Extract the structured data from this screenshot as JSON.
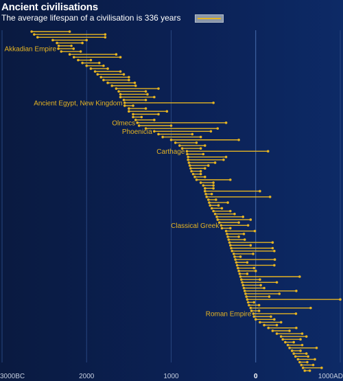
{
  "chart_data": {
    "type": "range",
    "title": "Ancient civilisations",
    "subtitle": "The average lifespan of a civilisation is 336 years",
    "xlim": [
      -3000,
      1000
    ],
    "x_ticks": [
      {
        "value": -3000,
        "label": "3000BC"
      },
      {
        "value": -2000,
        "label": "2000"
      },
      {
        "value": -1000,
        "label": "1000"
      },
      {
        "value": 0,
        "label": "0"
      },
      {
        "value": 1000,
        "label": "1000AD"
      }
    ],
    "grid": "vertical",
    "colors": {
      "accent": "#e6b422",
      "background": "#0b2155",
      "legend": "#8a96a8"
    },
    "annotations": [
      {
        "label": "Akkadian Empire",
        "row": 6
      },
      {
        "label": "Ancient Egypt, New Kingdom",
        "row": 25
      },
      {
        "label": "Olmecs",
        "row": 32
      },
      {
        "label": "Phoenicia",
        "row": 35
      },
      {
        "label": "Carthage",
        "row": 42
      },
      {
        "label": "Classical Greek",
        "row": 68
      },
      {
        "label": "Roman Empire",
        "row": 99
      }
    ],
    "civilisations": [
      {
        "start": -2650,
        "end": -2200
      },
      {
        "start": -2620,
        "end": -1780
      },
      {
        "start": -2580,
        "end": -1780
      },
      {
        "start": -2400,
        "end": -2000
      },
      {
        "start": -2350,
        "end": -2050
      },
      {
        "start": -2330,
        "end": -2180
      },
      {
        "start": -2334,
        "end": -2154
      },
      {
        "start": -2300,
        "end": -2070
      },
      {
        "start": -2200,
        "end": -1650
      },
      {
        "start": -2150,
        "end": -1600
      },
      {
        "start": -2100,
        "end": -1950
      },
      {
        "start": -2050,
        "end": -1850
      },
      {
        "start": -2000,
        "end": -1800
      },
      {
        "start": -1950,
        "end": -1750
      },
      {
        "start": -1900,
        "end": -1600
      },
      {
        "start": -1870,
        "end": -1560
      },
      {
        "start": -1830,
        "end": -1500
      },
      {
        "start": -1800,
        "end": -1500
      },
      {
        "start": -1750,
        "end": -1430
      },
      {
        "start": -1700,
        "end": -1420
      },
      {
        "start": -1650,
        "end": -1150
      },
      {
        "start": -1620,
        "end": -1300
      },
      {
        "start": -1600,
        "end": -1280
      },
      {
        "start": -1600,
        "end": -1200
      },
      {
        "start": -1560,
        "end": -1300
      },
      {
        "start": -1550,
        "end": -500
      },
      {
        "start": -1550,
        "end": -1450
      },
      {
        "start": -1500,
        "end": -1300
      },
      {
        "start": -1500,
        "end": -1050
      },
      {
        "start": -1450,
        "end": -1150
      },
      {
        "start": -1450,
        "end": -1350
      },
      {
        "start": -1420,
        "end": -1200
      },
      {
        "start": -1400,
        "end": -350
      },
      {
        "start": -1380,
        "end": -1000
      },
      {
        "start": -1300,
        "end": -450
      },
      {
        "start": -1200,
        "end": -530
      },
      {
        "start": -1150,
        "end": -750
      },
      {
        "start": -1100,
        "end": -650
      },
      {
        "start": -1000,
        "end": -200
      },
      {
        "start": -950,
        "end": -700
      },
      {
        "start": -900,
        "end": -600
      },
      {
        "start": -870,
        "end": -650
      },
      {
        "start": -814,
        "end": 146
      },
      {
        "start": -810,
        "end": -620
      },
      {
        "start": -800,
        "end": -350
      },
      {
        "start": -800,
        "end": -380
      },
      {
        "start": -790,
        "end": -480
      },
      {
        "start": -780,
        "end": -560
      },
      {
        "start": -770,
        "end": -600
      },
      {
        "start": -760,
        "end": -650
      },
      {
        "start": -740,
        "end": -650
      },
      {
        "start": -720,
        "end": -600
      },
      {
        "start": -700,
        "end": -300
      },
      {
        "start": -650,
        "end": -500
      },
      {
        "start": -620,
        "end": -500
      },
      {
        "start": -600,
        "end": -500
      },
      {
        "start": -600,
        "end": 50
      },
      {
        "start": -590,
        "end": -520
      },
      {
        "start": -580,
        "end": 170
      },
      {
        "start": -560,
        "end": -470
      },
      {
        "start": -550,
        "end": -330
      },
      {
        "start": -540,
        "end": -440
      },
      {
        "start": -520,
        "end": -400
      },
      {
        "start": -500,
        "end": -300
      },
      {
        "start": -480,
        "end": -250
      },
      {
        "start": -460,
        "end": -150
      },
      {
        "start": -450,
        "end": -60
      },
      {
        "start": -430,
        "end": -200
      },
      {
        "start": -410,
        "end": -90
      },
      {
        "start": -400,
        "end": -300
      },
      {
        "start": -350,
        "end": -10
      },
      {
        "start": -340,
        "end": -140
      },
      {
        "start": -330,
        "end": -200
      },
      {
        "start": -320,
        "end": -130
      },
      {
        "start": -310,
        "end": 200
      },
      {
        "start": -300,
        "end": -60
      },
      {
        "start": -290,
        "end": 200
      },
      {
        "start": -280,
        "end": 220
      },
      {
        "start": -260,
        "end": -30
      },
      {
        "start": -250,
        "end": -180
      },
      {
        "start": -240,
        "end": 226
      },
      {
        "start": -230,
        "end": -100
      },
      {
        "start": -220,
        "end": 220
      },
      {
        "start": -210,
        "end": -20
      },
      {
        "start": -200,
        "end": 0
      },
      {
        "start": -190,
        "end": -100
      },
      {
        "start": -180,
        "end": 520
      },
      {
        "start": -170,
        "end": 50
      },
      {
        "start": -160,
        "end": 250
      },
      {
        "start": -150,
        "end": 60
      },
      {
        "start": -140,
        "end": 100
      },
      {
        "start": -130,
        "end": 480
      },
      {
        "start": -120,
        "end": 280
      },
      {
        "start": -110,
        "end": 160
      },
      {
        "start": -100,
        "end": 1000
      },
      {
        "start": -90,
        "end": -20
      },
      {
        "start": -80,
        "end": 40
      },
      {
        "start": -60,
        "end": 650
      },
      {
        "start": -50,
        "end": 40
      },
      {
        "start": -27,
        "end": 476
      },
      {
        "start": -20,
        "end": 180
      },
      {
        "start": 0,
        "end": 220
      },
      {
        "start": 50,
        "end": 300
      },
      {
        "start": 100,
        "end": 250
      },
      {
        "start": 150,
        "end": 480
      },
      {
        "start": 200,
        "end": 400
      },
      {
        "start": 250,
        "end": 550
      },
      {
        "start": 300,
        "end": 600
      },
      {
        "start": 320,
        "end": 530
      },
      {
        "start": 350,
        "end": 450
      },
      {
        "start": 380,
        "end": 550
      },
      {
        "start": 400,
        "end": 720
      },
      {
        "start": 430,
        "end": 530
      },
      {
        "start": 450,
        "end": 600
      },
      {
        "start": 470,
        "end": 620
      },
      {
        "start": 500,
        "end": 700
      },
      {
        "start": 520,
        "end": 610
      },
      {
        "start": 540,
        "end": 680
      },
      {
        "start": 560,
        "end": 780
      },
      {
        "start": 580,
        "end": 640
      }
    ]
  }
}
